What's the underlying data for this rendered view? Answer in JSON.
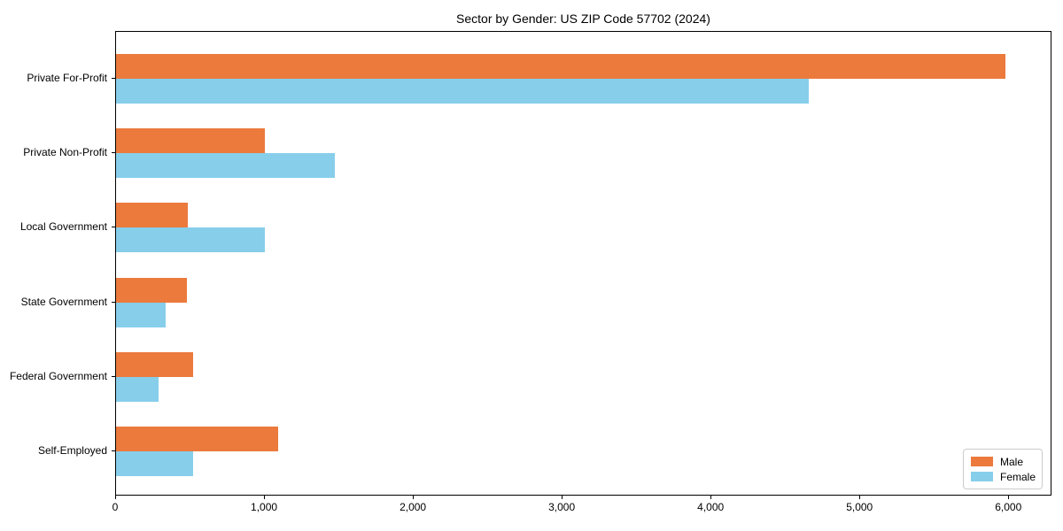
{
  "title": "Sector by Gender: US ZIP Code 57702 (2024)",
  "chart_data": {
    "type": "bar",
    "orientation": "horizontal",
    "title": "Sector by Gender: US ZIP Code 57702 (2024)",
    "categories": [
      "Private For-Profit",
      "Private Non-Profit",
      "Local Government",
      "State Government",
      "Federal Government",
      "Self-Employed"
    ],
    "series": [
      {
        "name": "Male",
        "color": "#EB7A3C",
        "values": [
          5975,
          1000,
          480,
          475,
          520,
          1090
        ]
      },
      {
        "name": "Female",
        "color": "#87CEEB",
        "values": [
          4655,
          1470,
          1000,
          330,
          285,
          520
        ]
      }
    ],
    "xlabel": "",
    "ylabel": "",
    "xlim": [
      0,
      6290
    ],
    "x_ticks": [
      0,
      1000,
      2000,
      3000,
      4000,
      5000,
      6000
    ],
    "x_tick_labels": [
      "0",
      "1,000",
      "2,000",
      "3,000",
      "4,000",
      "5,000",
      "6,000"
    ],
    "grid": false,
    "legend_position": "lower right"
  },
  "legend": {
    "items": [
      {
        "label": "Male",
        "color": "#EB7A3C"
      },
      {
        "label": "Female",
        "color": "#87CEEB"
      }
    ]
  }
}
